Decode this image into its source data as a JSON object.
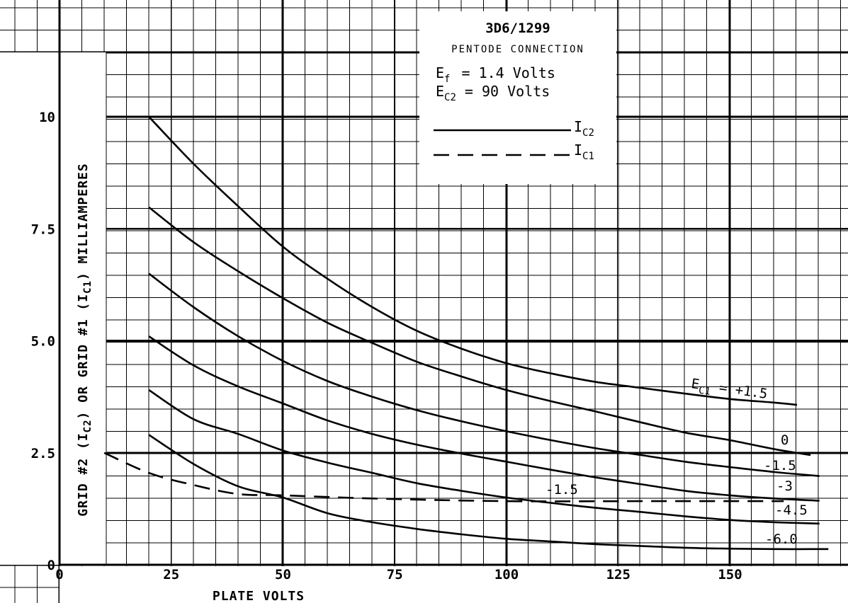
{
  "chart_data": {
    "type": "line",
    "title": "3D6/1299",
    "subtitle": "PENTODE CONNECTION",
    "conditions": [
      {
        "symbol": "E",
        "sub": "f",
        "text": "= 1.4 Volts"
      },
      {
        "symbol": "E",
        "sub": "C2",
        "text": "=  90 Volts"
      }
    ],
    "legend": [
      {
        "style": "solid",
        "symbol": "I",
        "sub": "C2"
      },
      {
        "style": "dashed",
        "symbol": "I",
        "sub": "C1"
      }
    ],
    "legend_position": "top-right",
    "xlabel": "PLATE VOLTS",
    "ylabel": "GRID #2 (I",
    "ylabel_sub1": "C2",
    "ylabel_mid": ") OR GRID #1 (I",
    "ylabel_sub2": "C1",
    "ylabel_end": ") MILLIAMPERES",
    "xlim": [
      0,
      175
    ],
    "ylim": [
      0,
      11.5
    ],
    "xticks": [
      "0",
      "25",
      "50",
      "75",
      "100",
      "125",
      "150"
    ],
    "yticks": [
      "0",
      "2.5",
      "5.0",
      "7.5",
      "10"
    ],
    "xtick_values": [
      0,
      25,
      50,
      75,
      100,
      125,
      150
    ],
    "ytick_values": [
      0,
      2.5,
      5.0,
      7.5,
      10
    ],
    "grid": true,
    "series": [
      {
        "name": "E C1 = +1.5",
        "label_main": "E",
        "label_sub": "C1",
        "label_rest": " = +1.5",
        "style": "solid",
        "x": [
          20,
          30,
          40,
          50,
          60,
          70,
          80,
          90,
          100,
          110,
          120,
          130,
          140,
          150,
          160,
          165
        ],
        "y": [
          10.0,
          8.95,
          8.0,
          7.1,
          6.38,
          5.75,
          5.22,
          4.82,
          4.5,
          4.27,
          4.08,
          3.95,
          3.82,
          3.7,
          3.62,
          3.57
        ]
      },
      {
        "name": "0",
        "label_main": "0",
        "style": "solid",
        "x": [
          20,
          30,
          40,
          50,
          60,
          70,
          80,
          90,
          100,
          110,
          120,
          130,
          140,
          150,
          160,
          168
        ],
        "y": [
          7.98,
          7.2,
          6.55,
          5.95,
          5.4,
          4.95,
          4.53,
          4.2,
          3.9,
          3.65,
          3.42,
          3.18,
          2.95,
          2.78,
          2.58,
          2.45
        ]
      },
      {
        "name": "-1.5",
        "label_main": "-1.5",
        "style": "solid",
        "x": [
          20,
          30,
          40,
          50,
          60,
          70,
          80,
          90,
          100,
          110,
          120,
          130,
          140,
          150,
          160,
          170
        ],
        "y": [
          6.5,
          5.75,
          5.1,
          4.55,
          4.1,
          3.75,
          3.45,
          3.2,
          2.98,
          2.78,
          2.6,
          2.45,
          2.3,
          2.18,
          2.07,
          1.98
        ]
      },
      {
        "name": "-3",
        "label_main": "-3",
        "style": "solid",
        "x": [
          20,
          30,
          40,
          50,
          60,
          70,
          80,
          90,
          100,
          110,
          120,
          130,
          140,
          150,
          160,
          170
        ],
        "y": [
          5.1,
          4.45,
          3.98,
          3.6,
          3.22,
          2.92,
          2.68,
          2.48,
          2.3,
          2.12,
          1.95,
          1.8,
          1.65,
          1.55,
          1.48,
          1.43
        ]
      },
      {
        "name": "-4.5",
        "label_main": "-4.5",
        "style": "solid",
        "x": [
          20,
          30,
          40,
          50,
          60,
          70,
          80,
          90,
          100,
          110,
          120,
          130,
          140,
          150,
          160,
          170
        ],
        "y": [
          3.9,
          3.25,
          2.92,
          2.55,
          2.28,
          2.05,
          1.82,
          1.65,
          1.5,
          1.38,
          1.27,
          1.18,
          1.08,
          1.0,
          0.95,
          0.92
        ]
      },
      {
        "name": "-6.0",
        "label_main": "-6.0",
        "style": "solid",
        "x": [
          20,
          30,
          40,
          50,
          60,
          70,
          80,
          90,
          100,
          110,
          120,
          130,
          140,
          150,
          160,
          172
        ],
        "y": [
          2.9,
          2.25,
          1.75,
          1.5,
          1.15,
          0.95,
          0.8,
          0.68,
          0.58,
          0.52,
          0.46,
          0.42,
          0.38,
          0.36,
          0.35,
          0.35
        ]
      },
      {
        "name": "I C1 at E C1 = -1.5",
        "label_main": "-1.5",
        "style": "dashed",
        "x": [
          10,
          20,
          30,
          40,
          50,
          70,
          100,
          130,
          162
        ],
        "y": [
          2.5,
          2.05,
          1.78,
          1.58,
          1.55,
          1.48,
          1.42,
          1.42,
          1.42
        ]
      }
    ]
  }
}
